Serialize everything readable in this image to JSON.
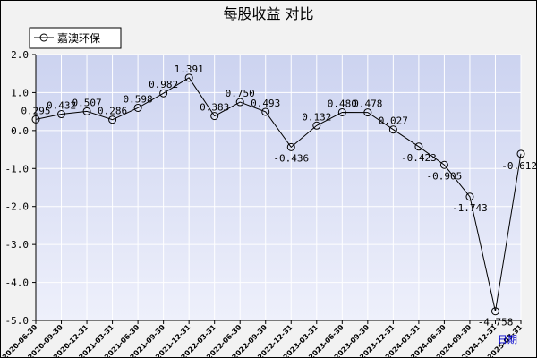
{
  "chart_data": {
    "type": "line",
    "title": "每股收益  对比",
    "xlabel": "日期",
    "ylabel": "",
    "ylim": [
      -5.0,
      2.0
    ],
    "yticks": [
      "2.0",
      "1.0",
      "0.0",
      "-1.0",
      "-2.0",
      "-3.0",
      "-4.0",
      "-5.0"
    ],
    "ytick_values": [
      2.0,
      1.0,
      0.0,
      -1.0,
      -2.0,
      -3.0,
      -4.0,
      -5.0
    ],
    "grid": true,
    "legend_position": "top-left",
    "categories": [
      "2020-06-30",
      "2020-09-30",
      "2020-12-31",
      "2021-03-31",
      "2021-06-30",
      "2021-09-30",
      "2021-12-31",
      "2022-03-31",
      "2022-06-30",
      "2022-09-30",
      "2022-12-31",
      "2023-03-31",
      "2023-06-30",
      "2023-09-30",
      "2023-12-31",
      "2024-03-31",
      "2024-06-30",
      "2024-09-30",
      "2024-12-31",
      "2025-03-31"
    ],
    "series": [
      {
        "name": "嘉澳环保",
        "values": [
          0.295,
          0.432,
          0.507,
          0.286,
          0.598,
          0.982,
          1.391,
          0.383,
          0.75,
          0.493,
          -0.436,
          0.132,
          0.48,
          0.478,
          0.027,
          -0.423,
          -0.905,
          -1.743,
          -4.758,
          -0.612
        ],
        "labels": [
          "0.295",
          "0.432",
          "0.507",
          "0.286",
          "0.598",
          "0.982",
          "1.391",
          "0.383",
          "0.750",
          "0.493",
          "-0.436",
          "0.132",
          "0.480",
          "0.478",
          "0.027",
          "-0.423",
          "-0.905",
          "-1.743",
          "-4.758",
          "-0.612"
        ]
      }
    ],
    "colors": {
      "plot_bg_top": "#ccd3f0",
      "plot_bg_bottom": "#eef0fb",
      "line": "#000000",
      "grid": "#ffffff",
      "frame_bg": "#f2f2f2"
    }
  }
}
